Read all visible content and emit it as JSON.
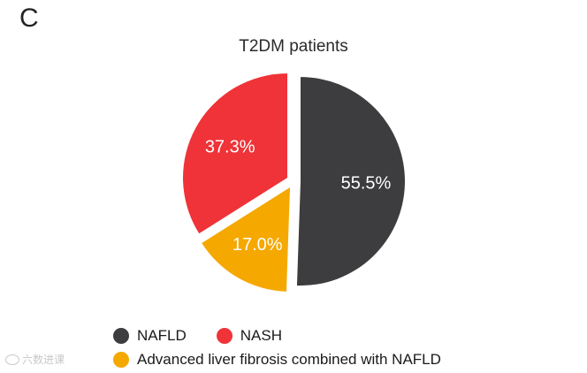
{
  "panel_label": "C",
  "watermark": "六数进课",
  "chart_data": {
    "type": "pie",
    "title": "T2DM patients",
    "slices": [
      {
        "label": "NAFLD",
        "value": 55.5,
        "value_label": "55.5%",
        "color": "#3d3d3f"
      },
      {
        "label": "Advanced liver fibrosis combined with NAFLD",
        "value": 17.0,
        "value_label": "17.0%",
        "color": "#f5a800"
      },
      {
        "label": "NASH",
        "value": 37.3,
        "value_label": "37.3%",
        "color": "#ef3338"
      }
    ],
    "legend": [
      {
        "label": "NAFLD",
        "color": "#3d3d3f"
      },
      {
        "label": "NASH",
        "color": "#ef3338"
      },
      {
        "label": "Advanced liver fibrosis combined with NAFLD",
        "color": "#f5a800"
      }
    ],
    "legend_position": "bottom",
    "exploded": true
  }
}
